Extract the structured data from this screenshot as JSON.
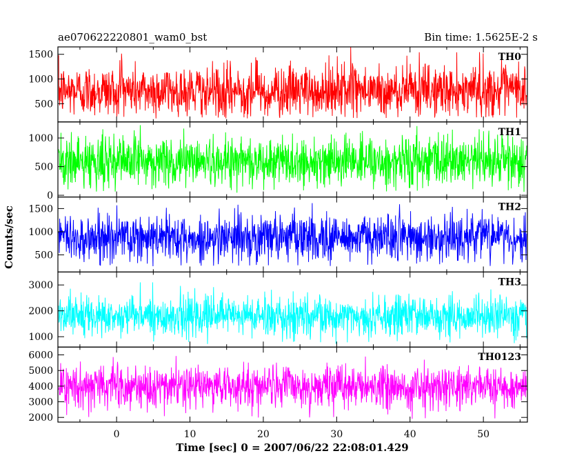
{
  "chart_data": {
    "type": "line",
    "title_left": "ae070622220801_wam0_bst",
    "title_right": "Bin time: 1.5625E-2 s",
    "xlabel": "Time [sec] 0 = 2007/06/22 22:08:01.429",
    "ylabel": "Counts/sec",
    "xlim": [
      -8,
      56
    ],
    "x_start": -7.9,
    "x_end": 55.9,
    "xticks": [
      0,
      10,
      20,
      30,
      40,
      50
    ],
    "grid": false,
    "panels": [
      {
        "name": "TH0",
        "color": "#ff0000",
        "ylim": [
          130,
          1650
        ],
        "yticks": [
          500,
          1000,
          1500
        ],
        "mean": 760,
        "noise_sd": 260,
        "min_value": 200,
        "max_value": 1650
      },
      {
        "name": "TH1",
        "color": "#00ff00",
        "ylim": [
          -30,
          1280
        ],
        "yticks": [
          0,
          500,
          1000
        ],
        "mean": 600,
        "noise_sd": 230,
        "min_value": 40,
        "max_value": 1250
      },
      {
        "name": "TH2",
        "color": "#0000ff",
        "ylim": [
          130,
          1750
        ],
        "yticks": [
          500,
          1000,
          1500
        ],
        "mean": 870,
        "noise_sd": 260,
        "min_value": 250,
        "max_value": 1720
      },
      {
        "name": "TH3",
        "color": "#00ffff",
        "ylim": [
          600,
          3500
        ],
        "yticks": [
          1000,
          2000,
          3000
        ],
        "mean": 1800,
        "noise_sd": 400,
        "min_value": 700,
        "max_value": 3400
      },
      {
        "name": "TH0123",
        "color": "#ff00ff",
        "ylim": [
          1700,
          6500
        ],
        "yticks": [
          2000,
          3000,
          4000,
          5000,
          6000
        ],
        "mean": 4000,
        "noise_sd": 650,
        "min_value": 1900,
        "max_value": 6300
      }
    ]
  }
}
